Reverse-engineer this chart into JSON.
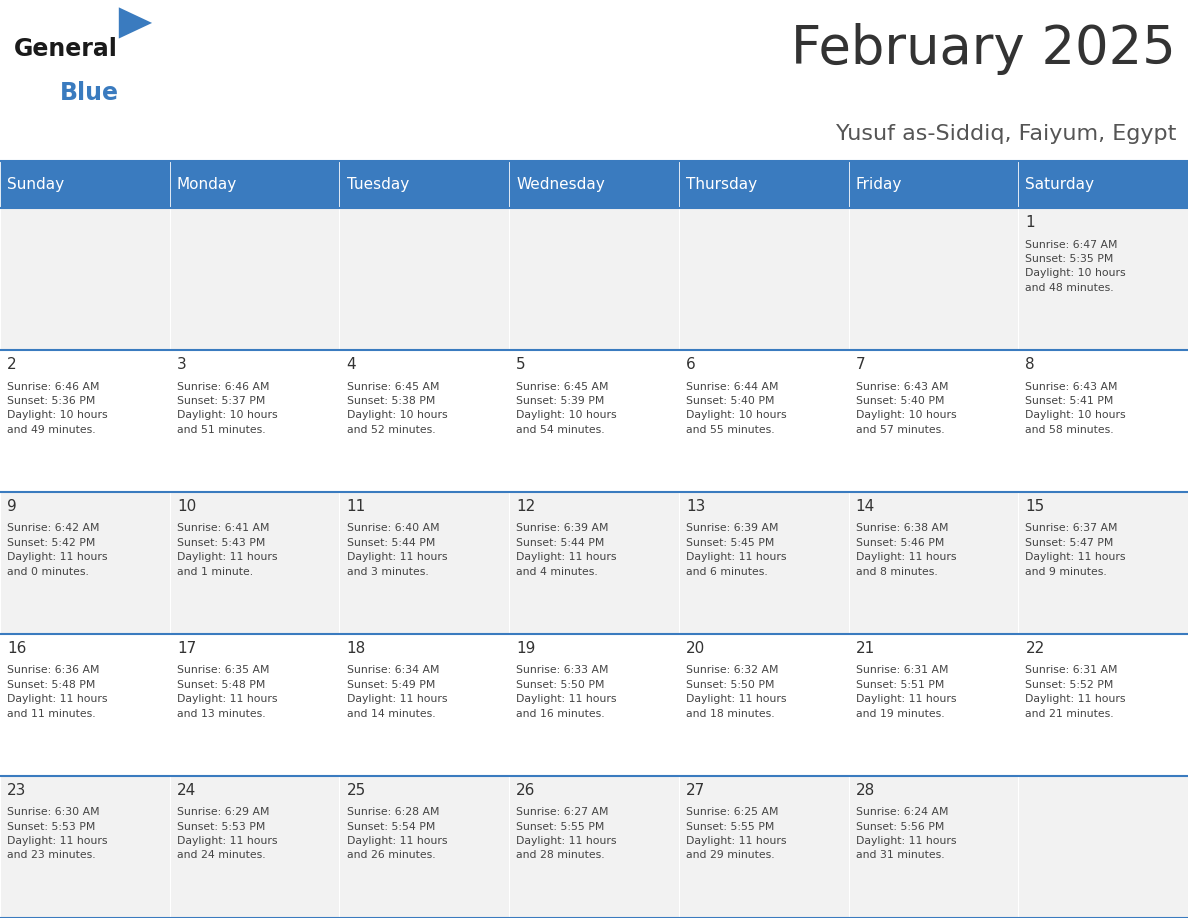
{
  "title": "February 2025",
  "subtitle": "Yusuf as-Siddiq, Faiyum, Egypt",
  "header_color": "#3a7bbf",
  "header_text_color": "#ffffff",
  "cell_bg_odd": "#f2f2f2",
  "cell_bg_even": "#ffffff",
  "day_number_color": "#333333",
  "info_text_color": "#444444",
  "border_color": "#3a7bbf",
  "days_of_week": [
    "Sunday",
    "Monday",
    "Tuesday",
    "Wednesday",
    "Thursday",
    "Friday",
    "Saturday"
  ],
  "weeks": [
    [
      {
        "day": null,
        "info": null
      },
      {
        "day": null,
        "info": null
      },
      {
        "day": null,
        "info": null
      },
      {
        "day": null,
        "info": null
      },
      {
        "day": null,
        "info": null
      },
      {
        "day": null,
        "info": null
      },
      {
        "day": 1,
        "info": "Sunrise: 6:47 AM\nSunset: 5:35 PM\nDaylight: 10 hours\nand 48 minutes."
      }
    ],
    [
      {
        "day": 2,
        "info": "Sunrise: 6:46 AM\nSunset: 5:36 PM\nDaylight: 10 hours\nand 49 minutes."
      },
      {
        "day": 3,
        "info": "Sunrise: 6:46 AM\nSunset: 5:37 PM\nDaylight: 10 hours\nand 51 minutes."
      },
      {
        "day": 4,
        "info": "Sunrise: 6:45 AM\nSunset: 5:38 PM\nDaylight: 10 hours\nand 52 minutes."
      },
      {
        "day": 5,
        "info": "Sunrise: 6:45 AM\nSunset: 5:39 PM\nDaylight: 10 hours\nand 54 minutes."
      },
      {
        "day": 6,
        "info": "Sunrise: 6:44 AM\nSunset: 5:40 PM\nDaylight: 10 hours\nand 55 minutes."
      },
      {
        "day": 7,
        "info": "Sunrise: 6:43 AM\nSunset: 5:40 PM\nDaylight: 10 hours\nand 57 minutes."
      },
      {
        "day": 8,
        "info": "Sunrise: 6:43 AM\nSunset: 5:41 PM\nDaylight: 10 hours\nand 58 minutes."
      }
    ],
    [
      {
        "day": 9,
        "info": "Sunrise: 6:42 AM\nSunset: 5:42 PM\nDaylight: 11 hours\nand 0 minutes."
      },
      {
        "day": 10,
        "info": "Sunrise: 6:41 AM\nSunset: 5:43 PM\nDaylight: 11 hours\nand 1 minute."
      },
      {
        "day": 11,
        "info": "Sunrise: 6:40 AM\nSunset: 5:44 PM\nDaylight: 11 hours\nand 3 minutes."
      },
      {
        "day": 12,
        "info": "Sunrise: 6:39 AM\nSunset: 5:44 PM\nDaylight: 11 hours\nand 4 minutes."
      },
      {
        "day": 13,
        "info": "Sunrise: 6:39 AM\nSunset: 5:45 PM\nDaylight: 11 hours\nand 6 minutes."
      },
      {
        "day": 14,
        "info": "Sunrise: 6:38 AM\nSunset: 5:46 PM\nDaylight: 11 hours\nand 8 minutes."
      },
      {
        "day": 15,
        "info": "Sunrise: 6:37 AM\nSunset: 5:47 PM\nDaylight: 11 hours\nand 9 minutes."
      }
    ],
    [
      {
        "day": 16,
        "info": "Sunrise: 6:36 AM\nSunset: 5:48 PM\nDaylight: 11 hours\nand 11 minutes."
      },
      {
        "day": 17,
        "info": "Sunrise: 6:35 AM\nSunset: 5:48 PM\nDaylight: 11 hours\nand 13 minutes."
      },
      {
        "day": 18,
        "info": "Sunrise: 6:34 AM\nSunset: 5:49 PM\nDaylight: 11 hours\nand 14 minutes."
      },
      {
        "day": 19,
        "info": "Sunrise: 6:33 AM\nSunset: 5:50 PM\nDaylight: 11 hours\nand 16 minutes."
      },
      {
        "day": 20,
        "info": "Sunrise: 6:32 AM\nSunset: 5:50 PM\nDaylight: 11 hours\nand 18 minutes."
      },
      {
        "day": 21,
        "info": "Sunrise: 6:31 AM\nSunset: 5:51 PM\nDaylight: 11 hours\nand 19 minutes."
      },
      {
        "day": 22,
        "info": "Sunrise: 6:31 AM\nSunset: 5:52 PM\nDaylight: 11 hours\nand 21 minutes."
      }
    ],
    [
      {
        "day": 23,
        "info": "Sunrise: 6:30 AM\nSunset: 5:53 PM\nDaylight: 11 hours\nand 23 minutes."
      },
      {
        "day": 24,
        "info": "Sunrise: 6:29 AM\nSunset: 5:53 PM\nDaylight: 11 hours\nand 24 minutes."
      },
      {
        "day": 25,
        "info": "Sunrise: 6:28 AM\nSunset: 5:54 PM\nDaylight: 11 hours\nand 26 minutes."
      },
      {
        "day": 26,
        "info": "Sunrise: 6:27 AM\nSunset: 5:55 PM\nDaylight: 11 hours\nand 28 minutes."
      },
      {
        "day": 27,
        "info": "Sunrise: 6:25 AM\nSunset: 5:55 PM\nDaylight: 11 hours\nand 29 minutes."
      },
      {
        "day": 28,
        "info": "Sunrise: 6:24 AM\nSunset: 5:56 PM\nDaylight: 11 hours\nand 31 minutes."
      },
      {
        "day": null,
        "info": null
      }
    ]
  ]
}
